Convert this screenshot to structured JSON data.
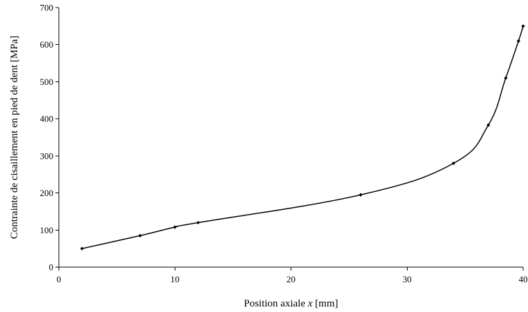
{
  "chart_data": {
    "type": "line",
    "title": "",
    "xlabel_parts": [
      "Position axiale ",
      "x",
      "  [mm]"
    ],
    "ylabel": "Contrainte de cisaillement en pied de dent [MPa]",
    "xlim": [
      0,
      40
    ],
    "ylim": [
      0,
      700
    ],
    "xticks": [
      "0",
      "10",
      "20",
      "30",
      "40"
    ],
    "yticks": [
      "0",
      "100",
      "200",
      "300",
      "400",
      "500",
      "600",
      "700"
    ],
    "grid": false,
    "legend": "none",
    "series": [
      {
        "x": [
          2,
          7,
          10,
          12,
          26,
          34,
          37,
          38.5,
          39.6,
          40
        ],
        "y": [
          50,
          85,
          108,
          120,
          195,
          280,
          383,
          510,
          610,
          650
        ],
        "color": "#000000",
        "marker": "diamond"
      }
    ]
  }
}
